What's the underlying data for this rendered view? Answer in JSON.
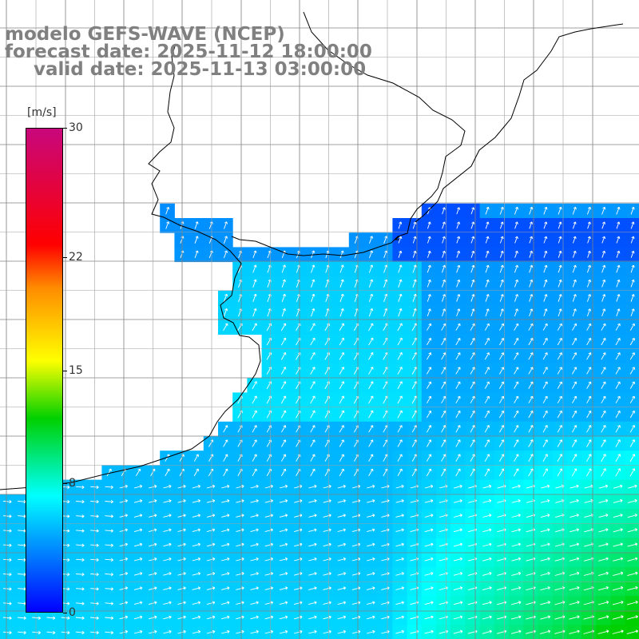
{
  "title": {
    "line1": "modelo GEFS-WAVE (NCEP)",
    "line2": "forecast date: 2025-11-12 18:00:00",
    "line3": "valid date: 2025-11-13 03:00:00"
  },
  "legend": {
    "unit": "[m/s]",
    "ticks": [
      "30",
      "22",
      "15",
      "8",
      "0"
    ],
    "tick_values": [
      30,
      22,
      15,
      8,
      0
    ],
    "range": [
      0,
      30
    ],
    "colors": [
      "#0000ff",
      "#00ffff",
      "#00d000",
      "#ffff00",
      "#ff8c00",
      "#ff0000",
      "#c8077c"
    ]
  },
  "map": {
    "field": "wind speed and direction",
    "land_color": "#ffffff",
    "grid_color": "#808080",
    "arrow_color": "#ffffff"
  }
}
